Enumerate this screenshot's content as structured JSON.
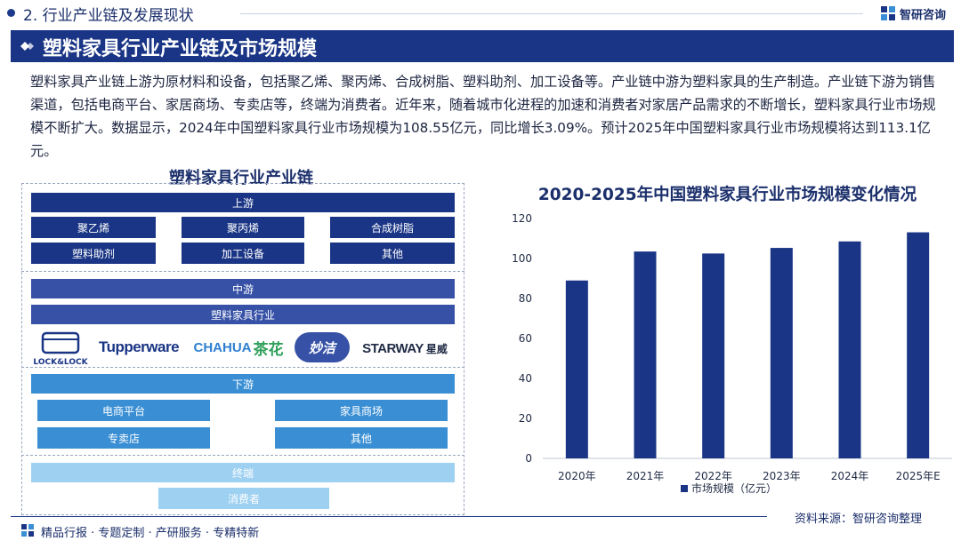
{
  "section": {
    "title": "2. 行业产业链及发展现状"
  },
  "brand": {
    "name": "智研咨询"
  },
  "banner": {
    "title": "塑料家具行业产业链及市场规模"
  },
  "intro": "塑料家具产业链上游为原材料和设备，包括聚乙烯、聚丙烯、合成树脂、塑料助剂、加工设备等。产业链中游为塑料家具的生产制造。产业链下游为销售渠道，包括电商平台、家居商场、专卖店等，终端为消费者。近年来，随着城市化进程的加速和消费者对家居产品需求的不断增长，塑料家具行业市场规模不断扩大。数据显示，2024年中国塑料家具行业市场规模为108.55亿元，同比增长3.09%。预计2025年中国塑料家具行业市场规模将达到113.1亿元。",
  "chain": {
    "title": "塑料家具行业产业链",
    "upstream": {
      "label": "上游",
      "items": [
        "聚乙烯",
        "聚丙烯",
        "合成树脂",
        "塑料助剂",
        "加工设备",
        "其他"
      ]
    },
    "midstream": {
      "label": "中游",
      "item": "塑料家具行业"
    },
    "logos": [
      "LOCK&LOCK",
      "Tupperware",
      "CHAHUA",
      "茶花",
      "妙洁",
      "STARWAY",
      "星威"
    ],
    "downstream": {
      "label": "下游",
      "items": [
        "电商平台",
        "家具商场",
        "专卖店",
        "其他"
      ]
    },
    "terminal": {
      "label": "终端",
      "item": "消费者"
    }
  },
  "chart_data": {
    "type": "bar",
    "title": "2020-2025年中国塑料家具行业市场规模变化情况",
    "categories": [
      "2020年",
      "2021年",
      "2022年",
      "2023年",
      "2024年",
      "2025年E"
    ],
    "series": [
      {
        "name": "市场规模（亿元）",
        "values": [
          89,
          103.5,
          102.5,
          105.3,
          108.55,
          113.1
        ],
        "color": "#1a3585"
      }
    ],
    "ylim": [
      0,
      120
    ],
    "yticks": [
      0,
      20,
      40,
      60,
      80,
      100,
      120
    ],
    "grid": false,
    "legend": "bottom"
  },
  "source": "资料来源：智研咨询整理",
  "footer": "精品行报 · 专题定制 · 产研服务 · 专精特新",
  "colors": {
    "primary": "#1a3585",
    "upstream": "#1a3585",
    "midstream": "#3651a6",
    "downstream": "#3a8fd4",
    "terminal": "#9dd0f1"
  }
}
